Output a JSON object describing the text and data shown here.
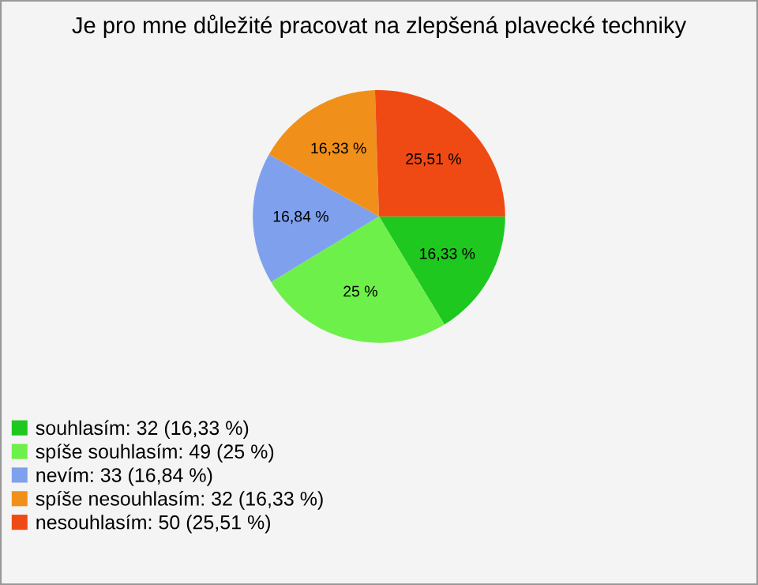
{
  "chart_data": {
    "type": "pie",
    "title": "Je pro mne důležité pracovat na zlepšená plavecké techniky",
    "categories": [
      "souhlasím: 32 (16,33 %)",
      "spíše souhlasím: 49 (25 %)",
      "nevím: 33 (16,84 %)",
      "spíše nesouhlasím: 32 (16,33 %)",
      "nesouhlasím: 50 (25,51 %)"
    ],
    "values": [
      16.33,
      25,
      16.84,
      16.33,
      25.51
    ],
    "value_labels": [
      "16,33 %",
      "25 %",
      "16,84 %",
      "16,33 %",
      "25,51 %"
    ],
    "colors": [
      "#1ec81e",
      "#6ef04a",
      "#7fa0ec",
      "#f0901a",
      "#f04a14"
    ],
    "legend": "bottom left"
  }
}
